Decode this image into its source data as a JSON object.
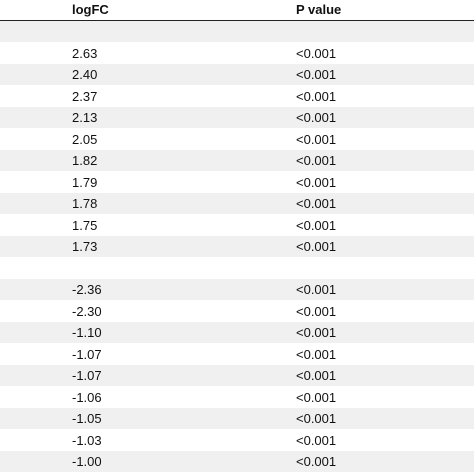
{
  "table": {
    "header": [
      "logFC",
      "P value"
    ],
    "groups": [
      {
        "rows": [
          [
            "2.63",
            "<0.001"
          ],
          [
            "2.40",
            "<0.001"
          ],
          [
            "2.37",
            "<0.001"
          ],
          [
            "2.13",
            "<0.001"
          ],
          [
            "2.05",
            "<0.001"
          ],
          [
            "1.82",
            "<0.001"
          ],
          [
            "1.79",
            "<0.001"
          ],
          [
            "1.78",
            "<0.001"
          ],
          [
            "1.75",
            "<0.001"
          ],
          [
            "1.73",
            "<0.001"
          ]
        ]
      },
      {
        "rows": [
          [
            "-2.36",
            "<0.001"
          ],
          [
            "-2.30",
            "<0.001"
          ],
          [
            "-1.10",
            "<0.001"
          ],
          [
            "-1.07",
            "<0.001"
          ],
          [
            "-1.07",
            "<0.001"
          ],
          [
            "-1.06",
            "<0.001"
          ],
          [
            "-1.05",
            "<0.001"
          ],
          [
            "-1.03",
            "<0.001"
          ],
          [
            "-1.00",
            "<0.001"
          ]
        ]
      }
    ]
  }
}
